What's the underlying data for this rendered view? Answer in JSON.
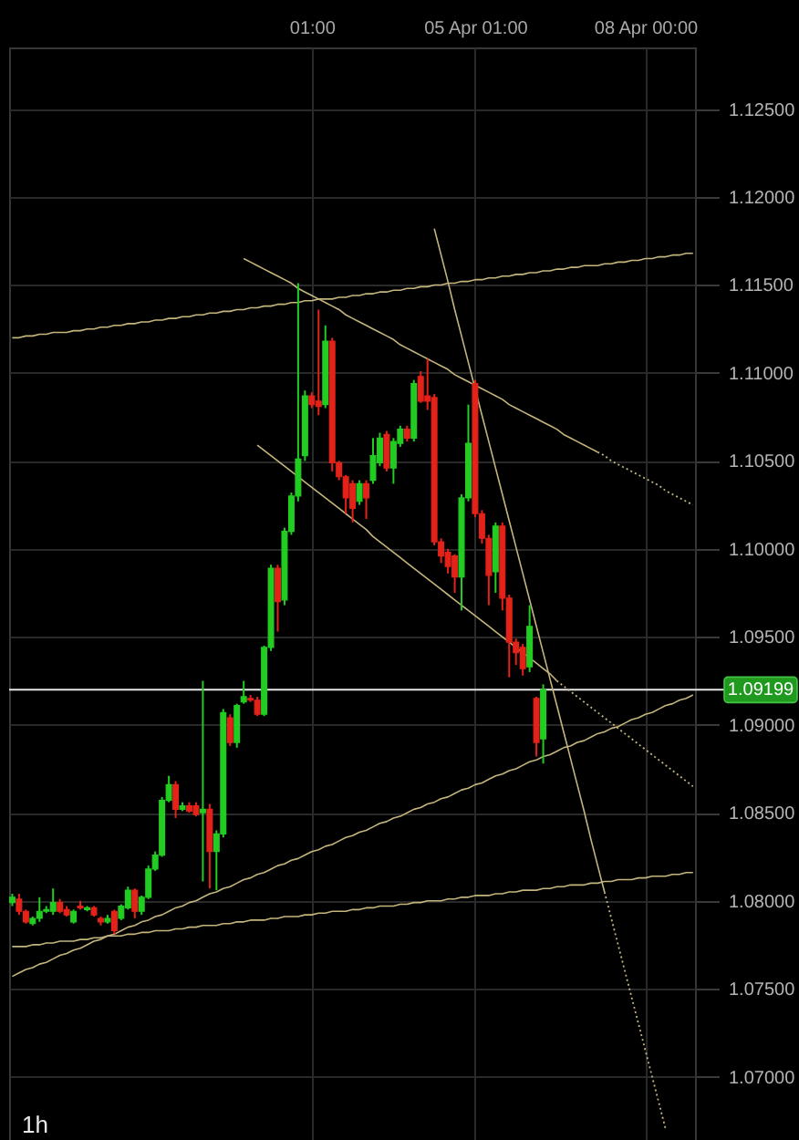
{
  "chart_data": {
    "type": "candlestick",
    "categories": [
      null,
      null,
      null,
      null,
      null,
      null,
      null,
      null,
      null,
      null,
      null,
      null,
      null,
      null,
      null,
      null,
      null,
      null,
      null,
      null,
      null,
      null,
      null,
      null,
      null,
      null,
      null,
      null,
      null,
      null,
      null,
      null,
      null,
      null,
      null,
      null,
      null,
      null,
      null,
      null,
      null,
      null,
      null,
      null,
      "01:00",
      null,
      null,
      null,
      null,
      null,
      null,
      null,
      null,
      null,
      null,
      null,
      null,
      null,
      null,
      null,
      null,
      null,
      null,
      null,
      null,
      null,
      null,
      null,
      "05 Apr 01:00",
      null,
      null,
      null,
      null,
      null,
      null,
      null,
      null,
      null,
      null,
      null,
      null,
      null,
      null,
      null,
      null,
      null,
      null,
      null,
      null,
      null,
      null,
      null,
      null,
      "08 Apr 00:00",
      null,
      null,
      null,
      null,
      null,
      null,
      null
    ],
    "ohlc": [
      [
        1.0799,
        1.0804,
        1.0797,
        1.0802
      ],
      [
        1.0801,
        1.0804,
        1.0792,
        1.0794
      ],
      [
        1.0794,
        1.0795,
        1.0787,
        1.0788
      ],
      [
        1.0787,
        1.0791,
        1.0786,
        1.079
      ],
      [
        1.079,
        1.0802,
        1.0788,
        1.0794
      ],
      [
        1.0794,
        1.0797,
        1.0793,
        1.0795
      ],
      [
        1.0794,
        1.0807,
        1.0792,
        1.0799
      ],
      [
        1.0799,
        1.0801,
        1.0793,
        1.0794
      ],
      [
        1.0795,
        1.0797,
        1.0791,
        1.0792
      ],
      [
        1.0788,
        1.0795,
        1.0787,
        1.0794
      ],
      [
        1.0797,
        1.08,
        1.0795,
        1.0796
      ],
      [
        1.0795,
        1.0797,
        1.0794,
        1.0796
      ],
      [
        1.0796,
        1.0797,
        1.0791,
        1.0792
      ],
      [
        1.079,
        1.0791,
        1.0786,
        1.0788
      ],
      [
        1.0788,
        1.0792,
        1.0787,
        1.079
      ],
      [
        1.0794,
        1.0795,
        1.0781,
        1.0783
      ],
      [
        1.079,
        1.0798,
        1.0789,
        1.0797
      ],
      [
        1.0796,
        1.0808,
        1.0795,
        1.0806
      ],
      [
        1.0806,
        1.0807,
        1.079,
        1.0794
      ],
      [
        1.0794,
        1.0803,
        1.0792,
        1.0802
      ],
      [
        1.0802,
        1.082,
        1.0801,
        1.0818
      ],
      [
        1.0818,
        1.0828,
        1.0817,
        1.0826
      ],
      [
        1.0826,
        1.0859,
        1.0825,
        1.0857
      ],
      [
        1.0857,
        1.0871,
        1.0856,
        1.0866
      ],
      [
        1.0866,
        1.0868,
        1.0847,
        1.0852
      ],
      [
        1.0852,
        1.0856,
        1.0851,
        1.0854
      ],
      [
        1.0854,
        1.0856,
        1.085,
        1.0851
      ],
      [
        1.0854,
        1.0856,
        1.0848,
        1.0849
      ],
      [
        1.085,
        1.0925,
        1.0811,
        1.0852
      ],
      [
        1.0852,
        1.0855,
        1.0807,
        1.0828
      ],
      [
        1.0828,
        1.084,
        1.0806,
        1.0838
      ],
      [
        1.0838,
        1.0909,
        1.0836,
        1.0907
      ],
      [
        1.0904,
        1.0906,
        1.0888,
        1.089
      ],
      [
        1.089,
        1.0912,
        1.0887,
        1.0911
      ],
      [
        1.0913,
        1.0925,
        1.0912,
        1.0916
      ],
      [
        1.0915,
        1.0917,
        1.0913,
        1.0914
      ],
      [
        1.0914,
        1.0916,
        1.0905,
        1.0906
      ],
      [
        1.0906,
        1.0945,
        1.0905,
        1.0944
      ],
      [
        1.0944,
        1.0991,
        1.0942,
        1.0989
      ],
      [
        1.0989,
        1.0991,
        1.0953,
        1.097
      ],
      [
        1.0971,
        1.1012,
        1.0968,
        1.101
      ],
      [
        1.101,
        1.1032,
        1.1008,
        1.103
      ],
      [
        1.103,
        1.1151,
        1.1027,
        1.1051
      ],
      [
        1.1053,
        1.109,
        1.105,
        1.1087
      ],
      [
        1.1087,
        1.1089,
        1.108,
        1.1082
      ],
      [
        1.1084,
        1.1136,
        1.1076,
        1.1081
      ],
      [
        1.1082,
        1.1127,
        1.108,
        1.1118
      ],
      [
        1.1118,
        1.112,
        1.1044,
        1.1049
      ],
      [
        1.1049,
        1.105,
        1.1039,
        1.1041
      ],
      [
        1.1041,
        1.1042,
        1.102,
        1.1029
      ],
      [
        1.1037,
        1.1039,
        1.1015,
        1.1023
      ],
      [
        1.1027,
        1.1039,
        1.1025,
        1.1037
      ],
      [
        1.1037,
        1.1039,
        1.1017,
        1.1029
      ],
      [
        1.1039,
        1.1063,
        1.1037,
        1.1053
      ],
      [
        1.1049,
        1.1066,
        1.1047,
        1.1063
      ],
      [
        1.1065,
        1.1067,
        1.1044,
        1.1046
      ],
      [
        1.1046,
        1.1063,
        1.1037,
        1.1061
      ],
      [
        1.106,
        1.107,
        1.1058,
        1.1068
      ],
      [
        1.1068,
        1.107,
        1.1061,
        1.1063
      ],
      [
        1.1063,
        1.1096,
        1.1061,
        1.1094
      ],
      [
        1.1098,
        1.1101,
        1.1083,
        1.1084
      ],
      [
        1.1087,
        1.1108,
        1.1079,
        1.1084
      ],
      [
        1.1086,
        1.1088,
        1.1002,
        1.1004
      ],
      [
        1.1004,
        1.1006,
        1.0992,
        1.0996
      ],
      [
        1.0998,
        1.1,
        1.0986,
        1.099
      ],
      [
        1.0996,
        1.0997,
        1.0975,
        1.0984
      ],
      [
        1.0984,
        1.1031,
        1.0965,
        1.1029
      ],
      [
        1.1029,
        1.1082,
        1.1027,
        1.106
      ],
      [
        1.1094,
        1.1096,
        1.1018,
        1.102
      ],
      [
        1.102,
        1.1022,
        1.1003,
        1.1006
      ],
      [
        1.1006,
        1.1008,
        1.0968,
        1.0985
      ],
      [
        1.0987,
        1.1015,
        1.0975,
        1.1013
      ],
      [
        1.1013,
        1.1015,
        1.0965,
        1.0972
      ],
      [
        1.0972,
        1.0974,
        1.0927,
        1.0947
      ],
      [
        1.0947,
        1.0949,
        1.0934,
        1.0941
      ],
      [
        1.0944,
        1.0946,
        1.0928,
        1.0932
      ],
      [
        1.0933,
        1.0968,
        1.093,
        1.0956
      ],
      [
        1.0915,
        1.0916,
        1.0882,
        1.089
      ],
      [
        1.0892,
        1.0923,
        1.0878,
        1.092
      ],
      null,
      null,
      null,
      null,
      null,
      null,
      null,
      null,
      null,
      null,
      null,
      null,
      null,
      null,
      null,
      null,
      null,
      null,
      null,
      null,
      null,
      null
    ],
    "colors": [
      "#22cc22",
      "#e32219",
      "#e32219",
      "#22cc22",
      "#22cc22",
      "#22cc22",
      "#22cc22",
      "#e32219",
      "#e32219",
      "#22cc22",
      "#e32219",
      "#22cc22",
      "#e32219",
      "#e32219",
      "#22cc22",
      "#e32219",
      "#22cc22",
      "#22cc22",
      "#e32219",
      "#22cc22",
      "#22cc22",
      "#22cc22",
      "#22cc22",
      "#22cc22",
      "#e32219",
      "#22cc22",
      "#e32219",
      "#e32219",
      "#22cc22",
      "#e32219",
      "#22cc22",
      "#22cc22",
      "#e32219",
      "#22cc22",
      "#22cc22",
      "#e32219",
      "#e32219",
      "#22cc22",
      "#22cc22",
      "#e32219",
      "#22cc22",
      "#22cc22",
      "#22cc22",
      "#22cc22",
      "#e32219",
      "#e32219",
      "#22cc22",
      "#e32219",
      "#e32219",
      "#e32219",
      "#e32219",
      "#22cc22",
      "#e32219",
      "#22cc22",
      "#22cc22",
      "#e32219",
      "#22cc22",
      "#22cc22",
      "#e32219",
      "#22cc22",
      "#e32219",
      "#e32219",
      "#e32219",
      "#e32219",
      "#e32219",
      "#e32219",
      "#22cc22",
      "#22cc22",
      "#e32219",
      "#e32219",
      "#e32219",
      "#22cc22",
      "#e32219",
      "#e32219",
      "#e32219",
      "#e32219",
      "#22cc22",
      "#e32219",
      "#22cc22",
      null,
      null,
      null,
      null,
      null,
      null,
      null,
      null,
      null,
      null,
      null,
      null,
      null,
      null,
      null,
      null,
      null,
      null,
      null,
      null,
      null,
      null
    ],
    "ylim": [
      1.0663,
      1.1285
    ],
    "yticks": [
      {
        "value": 1.07,
        "label": "1.07000"
      },
      {
        "value": 1.075,
        "label": "1.07500"
      },
      {
        "value": 1.08,
        "label": "1.08000"
      },
      {
        "value": 1.085,
        "label": "1.08500"
      },
      {
        "value": 1.09,
        "label": "1.09000"
      },
      {
        "value": 1.095,
        "label": "1.09500"
      },
      {
        "value": 1.1,
        "label": "1.10000"
      },
      {
        "value": 1.105,
        "label": "1.10500"
      },
      {
        "value": 1.11,
        "label": "1.11000"
      },
      {
        "value": 1.115,
        "label": "1.11500"
      },
      {
        "value": 1.12,
        "label": "1.12000"
      },
      {
        "value": 1.125,
        "label": "1.12500"
      }
    ],
    "grid": true,
    "ref_lines": [
      {
        "axis": "y",
        "value": 1.09199,
        "label": "1.09199",
        "color": "#e6e6e6"
      }
    ],
    "annotations": [
      "1h"
    ],
    "series": [
      {
        "type": "line",
        "color": "#c4b57c",
        "line_style": "solid",
        "values": [
          1.112,
          1.112,
          1.1121,
          1.1121,
          1.1122,
          1.1122,
          1.1123,
          1.1123,
          1.1123,
          1.1124,
          1.1124,
          1.1125,
          1.1125,
          1.1126,
          1.1126,
          1.1127,
          1.1127,
          1.1128,
          1.1128,
          1.1129,
          1.1129,
          1.113,
          1.113,
          1.1131,
          1.1131,
          1.1132,
          1.1132,
          1.1133,
          1.1133,
          1.1134,
          1.1134,
          1.1135,
          1.1135,
          1.1136,
          1.1136,
          1.1137,
          1.1137,
          1.1138,
          1.1138,
          1.1139,
          1.1139,
          1.114,
          1.114,
          1.1141,
          1.1141,
          1.1142,
          1.1142,
          1.1142,
          1.1143,
          1.1143,
          1.1144,
          1.1144,
          1.1145,
          1.1145,
          1.1146,
          1.1146,
          1.1147,
          1.1147,
          1.1148,
          1.1148,
          1.1149,
          1.1149,
          1.115,
          1.115,
          1.1151,
          1.1151,
          1.1152,
          1.1152,
          1.1153,
          1.1153,
          1.1154,
          1.1154,
          1.1155,
          1.1155,
          1.1156,
          1.1156,
          1.1157,
          1.1157,
          1.1158,
          1.1158,
          1.1159,
          1.1159,
          1.116,
          1.116,
          1.1161,
          1.1161,
          1.1161,
          1.1162,
          1.1162,
          1.1163,
          1.1163,
          1.1164,
          1.1164,
          1.1165,
          1.1165,
          1.1166,
          1.1166,
          1.1167,
          1.1167,
          1.1168,
          1.1168
        ]
      },
      {
        "type": "line",
        "color": "#c4b57c",
        "line_style": "solid",
        "values": [
          null,
          null,
          null,
          null,
          null,
          null,
          null,
          null,
          null,
          null,
          null,
          null,
          null,
          null,
          null,
          null,
          null,
          null,
          null,
          null,
          null,
          null,
          null,
          null,
          null,
          null,
          null,
          null,
          null,
          null,
          null,
          null,
          null,
          null,
          1.1165,
          1.1163,
          1.1161,
          1.1159,
          1.1157,
          1.1155,
          1.1153,
          1.1151,
          1.1148,
          1.1146,
          1.1144,
          1.1142,
          1.114,
          1.1138,
          1.1136,
          1.1133,
          1.1131,
          1.1129,
          1.1127,
          1.1125,
          1.1123,
          1.1121,
          1.1119,
          1.1116,
          1.1114,
          1.1112,
          1.111,
          1.1108,
          1.1106,
          1.1104,
          1.1102,
          1.1099,
          1.1097,
          1.1095,
          1.1093,
          1.1091,
          1.1089,
          1.1087,
          1.1085,
          1.1082,
          1.108,
          1.1078,
          1.1076,
          1.1074,
          1.1072,
          1.107,
          1.1068,
          1.1065,
          1.1063,
          1.1061,
          1.1059,
          1.1057,
          1.1055,
          null,
          null,
          null,
          null,
          null,
          null,
          null,
          null,
          null,
          null,
          null,
          null,
          null,
          null
        ]
      },
      {
        "type": "line",
        "color": "#c4b57c",
        "line_style": "dotted",
        "values": [
          null,
          null,
          null,
          null,
          null,
          null,
          null,
          null,
          null,
          null,
          null,
          null,
          null,
          null,
          null,
          null,
          null,
          null,
          null,
          null,
          null,
          null,
          null,
          null,
          null,
          null,
          null,
          null,
          null,
          null,
          null,
          null,
          null,
          null,
          null,
          null,
          null,
          null,
          null,
          null,
          null,
          null,
          null,
          null,
          null,
          null,
          null,
          null,
          null,
          null,
          null,
          null,
          null,
          null,
          null,
          null,
          null,
          null,
          null,
          null,
          null,
          null,
          null,
          null,
          null,
          null,
          null,
          null,
          null,
          null,
          null,
          null,
          null,
          null,
          null,
          null,
          null,
          null,
          null,
          null,
          null,
          null,
          null,
          null,
          null,
          null,
          1.1055,
          1.1053,
          1.105,
          1.1048,
          1.1046,
          1.1044,
          1.1042,
          1.104,
          1.1038,
          1.1036,
          1.1033,
          1.1031,
          1.1029,
          1.1027,
          1.1025
        ]
      },
      {
        "type": "line",
        "color": "#c4b57c",
        "line_style": "solid",
        "values": [
          null,
          null,
          null,
          null,
          null,
          null,
          null,
          null,
          null,
          null,
          null,
          null,
          null,
          null,
          null,
          null,
          null,
          null,
          null,
          null,
          null,
          null,
          null,
          null,
          null,
          null,
          null,
          null,
          null,
          null,
          null,
          null,
          null,
          null,
          null,
          null,
          1.1059,
          1.1056,
          1.1053,
          1.105,
          1.1047,
          1.1044,
          1.1041,
          1.1038,
          1.1035,
          1.1032,
          1.1029,
          1.1026,
          1.1023,
          1.102,
          1.1017,
          1.1014,
          1.1011,
          1.1007,
          1.1004,
          1.1001,
          1.0998,
          1.0995,
          1.0992,
          1.0989,
          1.0986,
          1.0983,
          1.098,
          1.0977,
          1.0974,
          1.0971,
          1.0968,
          1.0965,
          1.0962,
          1.0959,
          1.0956,
          1.0953,
          1.095,
          1.0947,
          1.0944,
          1.0941,
          1.0938,
          1.0935,
          1.0932,
          1.0929,
          1.0925,
          null,
          null,
          null,
          null,
          null,
          null,
          null,
          null,
          null,
          null,
          null,
          null,
          null,
          null,
          null,
          null,
          null,
          null,
          null,
          null
        ]
      },
      {
        "type": "line",
        "color": "#c4b57c",
        "line_style": "dotted",
        "values": [
          null,
          null,
          null,
          null,
          null,
          null,
          null,
          null,
          null,
          null,
          null,
          null,
          null,
          null,
          null,
          null,
          null,
          null,
          null,
          null,
          null,
          null,
          null,
          null,
          null,
          null,
          null,
          null,
          null,
          null,
          null,
          null,
          null,
          null,
          null,
          null,
          null,
          null,
          null,
          null,
          null,
          null,
          null,
          null,
          null,
          null,
          null,
          null,
          null,
          null,
          null,
          null,
          null,
          null,
          null,
          null,
          null,
          null,
          null,
          null,
          null,
          null,
          null,
          null,
          null,
          null,
          null,
          null,
          null,
          null,
          null,
          null,
          null,
          null,
          null,
          null,
          null,
          null,
          null,
          null,
          1.0925,
          1.0922,
          1.0919,
          1.0916,
          1.0913,
          1.091,
          1.0907,
          1.0904,
          1.0901,
          1.0898,
          1.0895,
          1.0892,
          1.0889,
          1.0886,
          1.0883,
          1.088,
          1.0877,
          1.0874,
          1.0871,
          1.0868,
          1.0865
        ]
      },
      {
        "type": "line",
        "color": "#c4b57c",
        "line_style": "solid",
        "values": [
          null,
          null,
          null,
          null,
          null,
          null,
          null,
          null,
          null,
          null,
          null,
          null,
          null,
          null,
          null,
          null,
          null,
          null,
          null,
          null,
          null,
          null,
          null,
          null,
          null,
          null,
          null,
          null,
          null,
          null,
          null,
          null,
          null,
          null,
          null,
          null,
          null,
          null,
          null,
          null,
          null,
          null,
          null,
          null,
          null,
          null,
          null,
          null,
          null,
          null,
          null,
          null,
          null,
          null,
          null,
          null,
          null,
          null,
          null,
          null,
          null,
          null,
          1.1182,
          1.1167,
          1.1152,
          1.1136,
          1.1121,
          1.1106,
          1.1091,
          1.1076,
          1.1061,
          1.1046,
          1.1031,
          1.1016,
          1.1001,
          1.0986,
          1.0971,
          1.0956,
          1.0941,
          1.0926,
          1.0911,
          1.0896,
          1.0881,
          1.0866,
          1.0851,
          1.0835,
          1.082,
          1.0805,
          null,
          null,
          null,
          null,
          null,
          null,
          null,
          null,
          null,
          null,
          null,
          null,
          null
        ]
      },
      {
        "type": "line",
        "color": "#c4b57c",
        "line_style": "dotted",
        "values": [
          null,
          null,
          null,
          null,
          null,
          null,
          null,
          null,
          null,
          null,
          null,
          null,
          null,
          null,
          null,
          null,
          null,
          null,
          null,
          null,
          null,
          null,
          null,
          null,
          null,
          null,
          null,
          null,
          null,
          null,
          null,
          null,
          null,
          null,
          null,
          null,
          null,
          null,
          null,
          null,
          null,
          null,
          null,
          null,
          null,
          null,
          null,
          null,
          null,
          null,
          null,
          null,
          null,
          null,
          null,
          null,
          null,
          null,
          null,
          null,
          null,
          null,
          null,
          null,
          null,
          null,
          null,
          null,
          null,
          null,
          null,
          null,
          null,
          null,
          null,
          null,
          null,
          null,
          null,
          null,
          null,
          null,
          null,
          null,
          null,
          null,
          null,
          1.0805,
          1.079,
          1.0775,
          1.076,
          1.0745,
          1.073,
          1.0715,
          1.07,
          1.0685,
          1.067,
          null,
          null,
          null,
          null
        ]
      },
      {
        "type": "line",
        "color": "#c4b57c",
        "line_style": "solid",
        "values": [
          1.0757,
          1.0759,
          1.0761,
          1.0762,
          1.0764,
          1.0765,
          1.0767,
          1.0769,
          1.077,
          1.0772,
          1.0773,
          1.0775,
          1.0777,
          1.0778,
          1.078,
          1.0781,
          1.0783,
          1.0785,
          1.0786,
          1.0788,
          1.0789,
          1.0791,
          1.0792,
          1.0794,
          1.0796,
          1.0797,
          1.0799,
          1.08,
          1.0802,
          1.0804,
          1.0805,
          1.0807,
          1.0808,
          1.081,
          1.0812,
          1.0813,
          1.0815,
          1.0816,
          1.0818,
          1.082,
          1.0821,
          1.0823,
          1.0824,
          1.0826,
          1.0828,
          1.0829,
          1.0831,
          1.0832,
          1.0834,
          1.0836,
          1.0837,
          1.0839,
          1.084,
          1.0842,
          1.0844,
          1.0845,
          1.0847,
          1.0848,
          1.085,
          1.0852,
          1.0853,
          1.0855,
          1.0856,
          1.0858,
          1.0859,
          1.0861,
          1.0863,
          1.0864,
          1.0866,
          1.0867,
          1.0869,
          1.0871,
          1.0872,
          1.0874,
          1.0875,
          1.0877,
          1.0879,
          1.088,
          1.0882,
          1.0883,
          1.0885,
          1.0887,
          1.0888,
          1.089,
          1.0891,
          1.0893,
          1.0895,
          1.0896,
          1.0898,
          1.0899,
          1.0901,
          1.0903,
          1.0904,
          1.0906,
          1.0907,
          1.0909,
          1.0911,
          1.0912,
          1.0914,
          1.0915,
          1.0917
        ]
      },
      {
        "type": "line",
        "color": "#c4b57c",
        "line_style": "solid",
        "values": [
          1.0774,
          1.0774,
          1.0774,
          1.0775,
          1.0775,
          1.0776,
          1.0776,
          1.0777,
          1.0777,
          1.0777,
          1.0778,
          1.0778,
          1.0779,
          1.0779,
          1.078,
          1.078,
          1.078,
          1.0781,
          1.0781,
          1.0782,
          1.0782,
          1.0783,
          1.0783,
          1.0783,
          1.0784,
          1.0784,
          1.0785,
          1.0785,
          1.0786,
          1.0786,
          1.0786,
          1.0787,
          1.0787,
          1.0788,
          1.0788,
          1.0789,
          1.0789,
          1.0789,
          1.079,
          1.079,
          1.0791,
          1.0791,
          1.0791,
          1.0792,
          1.0792,
          1.0793,
          1.0793,
          1.0794,
          1.0794,
          1.0794,
          1.0795,
          1.0795,
          1.0796,
          1.0796,
          1.0797,
          1.0797,
          1.0797,
          1.0798,
          1.0798,
          1.0799,
          1.0799,
          1.08,
          1.08,
          1.08,
          1.0801,
          1.0801,
          1.0802,
          1.0802,
          1.0803,
          1.0803,
          1.0803,
          1.0804,
          1.0804,
          1.0805,
          1.0805,
          1.0806,
          1.0806,
          1.0806,
          1.0807,
          1.0807,
          1.0808,
          1.0808,
          1.0809,
          1.0809,
          1.0809,
          1.081,
          1.081,
          1.0811,
          1.0811,
          1.0812,
          1.0812,
          1.0812,
          1.0813,
          1.0813,
          1.0814,
          1.0814,
          1.0814,
          1.0815,
          1.0815,
          1.0816,
          1.0816
        ]
      }
    ]
  }
}
